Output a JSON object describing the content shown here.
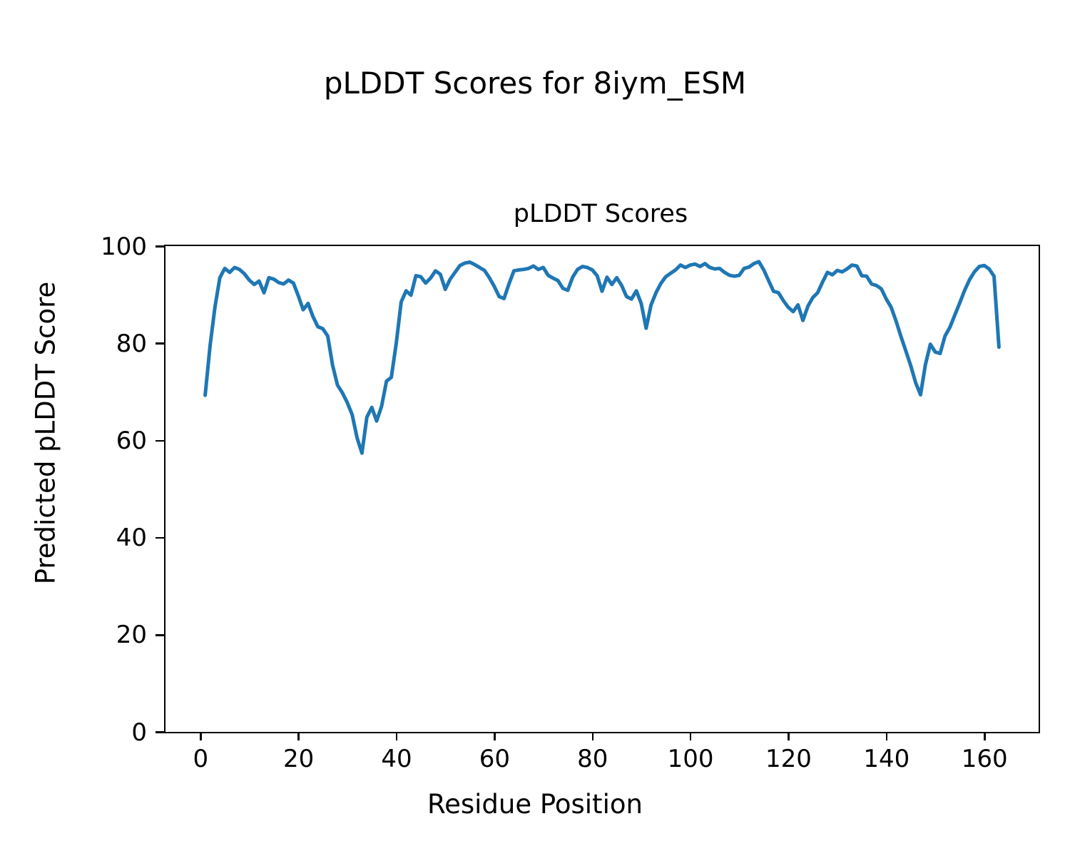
{
  "figure": {
    "title": "pLDDT Scores for 8iym_ESM"
  },
  "chart_data": {
    "type": "line",
    "title": "pLDDT Scores",
    "xlabel": "Residue Position",
    "ylabel": "Predicted pLDDT Score",
    "line_color": "#1f77b4",
    "line_width": 5,
    "grid": false,
    "legend": "none",
    "x_start": 1,
    "x_step": 1,
    "xlim": [
      -7.1,
      171.1
    ],
    "ylim": [
      0,
      100
    ],
    "xticks": [
      0,
      20,
      40,
      60,
      80,
      100,
      120,
      140,
      160
    ],
    "yticks": [
      0,
      20,
      40,
      60,
      80,
      100
    ],
    "values": [
      69.3,
      79.5,
      87.5,
      93.5,
      95.4,
      94.6,
      95.6,
      95.2,
      94.3,
      93.0,
      92.1,
      92.8,
      90.4,
      93.5,
      93.2,
      92.5,
      92.2,
      93.0,
      92.4,
      89.8,
      86.9,
      88.2,
      85.5,
      83.4,
      83.0,
      81.5,
      75.5,
      71.4,
      69.8,
      67.8,
      65.3,
      60.5,
      57.4,
      64.8,
      66.8,
      64.0,
      67.0,
      72.2,
      73.0,
      80.0,
      88.5,
      90.8,
      89.9,
      93.9,
      93.7,
      92.4,
      93.4,
      94.9,
      94.2,
      91.1,
      93.2,
      94.6,
      96.0,
      96.5,
      96.7,
      96.2,
      95.6,
      95.0,
      93.5,
      91.7,
      89.6,
      89.2,
      92.2,
      94.9,
      95.1,
      95.2,
      95.4,
      95.9,
      95.2,
      95.6,
      94.0,
      93.4,
      92.9,
      91.3,
      90.9,
      93.6,
      95.2,
      95.8,
      95.6,
      95.1,
      93.9,
      90.7,
      93.6,
      92.1,
      93.5,
      91.9,
      89.6,
      89.1,
      90.8,
      88.2,
      83.1,
      87.9,
      90.4,
      92.3,
      93.7,
      94.4,
      95.1,
      96.1,
      95.6,
      96.1,
      96.3,
      95.8,
      96.4,
      95.6,
      95.3,
      95.4,
      94.6,
      94.0,
      93.8,
      94.0,
      95.4,
      95.7,
      96.4,
      96.8,
      95.1,
      92.9,
      90.7,
      90.4,
      88.8,
      87.4,
      86.5,
      87.9,
      84.7,
      87.6,
      89.4,
      90.4,
      92.6,
      94.6,
      94.1,
      95.0,
      94.7,
      95.3,
      96.1,
      95.9,
      93.9,
      93.8,
      92.2,
      91.9,
      91.2,
      89.1,
      87.4,
      84.6,
      81.4,
      78.4,
      75.4,
      71.9,
      69.4,
      75.6,
      79.8,
      78.2,
      77.9,
      81.5,
      83.3,
      85.8,
      88.3,
      90.9,
      93.1,
      94.7,
      95.8,
      96.0,
      95.3,
      93.8,
      79.2
    ]
  }
}
